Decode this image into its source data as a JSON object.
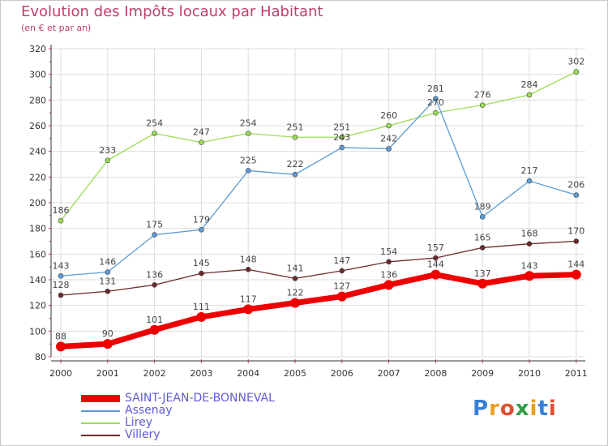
{
  "header": {
    "title": "Evolution des Impôts locaux par Habitant",
    "subtitle": "(en € et par an)"
  },
  "brand": {
    "text": "Proxiti"
  },
  "chart_data": {
    "type": "line",
    "x": [
      "2000",
      "2001",
      "2002",
      "2003",
      "2004",
      "2005",
      "2006",
      "2007",
      "2008",
      "2009",
      "2010",
      "2011"
    ],
    "ylim": [
      80,
      320
    ],
    "yticks": [
      80,
      100,
      120,
      140,
      160,
      180,
      200,
      220,
      240,
      260,
      280,
      300,
      320
    ],
    "grid": true,
    "legend": "bottom-left",
    "series": [
      {
        "name": "SAINT-JEAN-DE-BONNEVAL",
        "color": "#ee0000",
        "values": [
          88,
          90,
          101,
          111,
          117,
          122,
          127,
          136,
          144,
          137,
          143,
          144
        ]
      },
      {
        "name": "Assenay",
        "color": "#5b9bd5",
        "values": [
          143,
          146,
          175,
          179,
          225,
          222,
          243,
          242,
          281,
          189,
          217,
          206
        ]
      },
      {
        "name": "Lirey",
        "color": "#99dd55",
        "values": [
          186,
          233,
          254,
          247,
          254,
          251,
          251,
          260,
          270,
          276,
          284,
          302
        ]
      },
      {
        "name": "Villery",
        "color": "#6b2a2a",
        "values": [
          128,
          131,
          136,
          145,
          148,
          141,
          147,
          154,
          157,
          165,
          168,
          170
        ]
      }
    ]
  }
}
